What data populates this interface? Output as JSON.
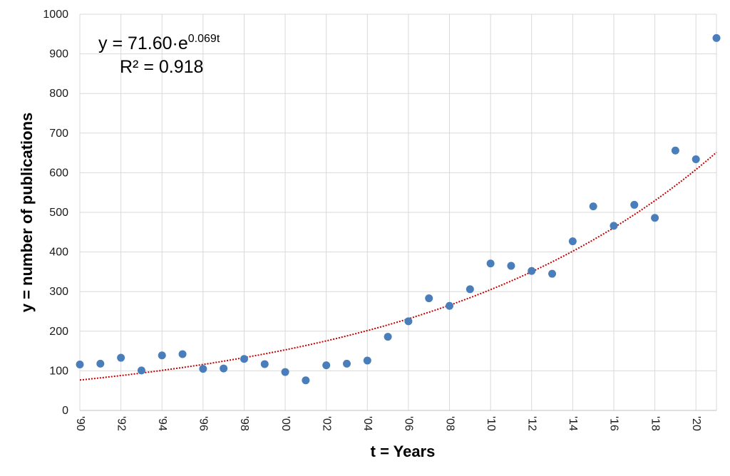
{
  "chart_data": {
    "type": "scatter",
    "xlabel": "t = Years",
    "ylabel": "y = number of publications",
    "xlim": [
      1990,
      2021
    ],
    "ylim": [
      0,
      1000
    ],
    "y_ticks": [
      0,
      100,
      200,
      300,
      400,
      500,
      600,
      700,
      800,
      900,
      1000
    ],
    "x_ticks": [
      1990,
      1992,
      1994,
      1996,
      1998,
      2000,
      2002,
      2004,
      2006,
      2008,
      2010,
      2012,
      2014,
      2016,
      2018,
      2020
    ],
    "x_tick_labels": [
      "'90",
      "'92",
      "'94",
      "'96",
      "'98",
      "'00",
      "'02",
      "'04",
      "'06",
      "'08",
      "'10",
      "'12",
      "'14",
      "'16",
      "'18",
      "'20"
    ],
    "grid": true,
    "series": [
      {
        "color": "#4a7ebb",
        "x": [
          1990,
          1991,
          1992,
          1993,
          1994,
          1995,
          1996,
          1997,
          1998,
          1999,
          2000,
          2001,
          2002,
          2003,
          2004,
          2005,
          2006,
          2007,
          2008,
          2009,
          2010,
          2011,
          2012,
          2013,
          2014,
          2015,
          2016,
          2017,
          2018,
          2019,
          2020,
          2021
        ],
        "y": [
          116,
          118,
          133,
          101,
          139,
          142,
          105,
          106,
          130,
          117,
          97,
          76,
          114,
          118,
          126,
          186,
          225,
          283,
          264,
          306,
          371,
          365,
          352,
          345,
          427,
          515,
          466,
          519,
          486,
          656,
          634,
          940
        ]
      }
    ],
    "trendline": {
      "type": "exponential",
      "a": 71.6,
      "b": 0.069,
      "t_origin": 1989,
      "color": "#c00000",
      "style": "dotted"
    },
    "annotation": {
      "equation_prefix": "y = 71.60·e",
      "equation_exponent": "0.069t",
      "r_squared": "R² = 0.918"
    }
  }
}
